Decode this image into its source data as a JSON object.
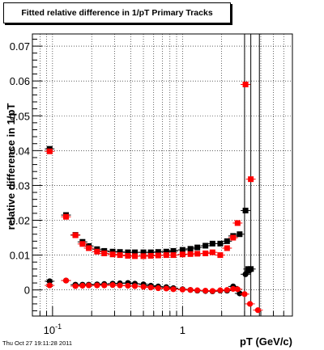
{
  "title": "Fitted relative difference in 1/pT  Primary Tracks",
  "footer": "Thu Oct 27 19:11:28 2011",
  "chart_data": {
    "type": "scatter",
    "title": "Fitted relative difference in 1/pT  Primary Tracks",
    "xlabel": "pT (GeV/c)",
    "ylabel": "relative difference in 1/pT",
    "xscale": "log",
    "xlim": [
      0.07,
      7.0
    ],
    "ylim": [
      -0.0075,
      0.0735
    ],
    "grid": true,
    "x_ticks": [
      {
        "value": 0.1,
        "label": "10⁻¹"
      },
      {
        "value": 1,
        "label": "1"
      }
    ],
    "y_ticks": [
      {
        "value": 0,
        "label": "0"
      },
      {
        "value": 0.01,
        "label": "0.01"
      },
      {
        "value": 0.02,
        "label": "0.02"
      },
      {
        "value": 0.03,
        "label": "0.03"
      },
      {
        "value": 0.04,
        "label": "0.04"
      },
      {
        "value": 0.05,
        "label": "0.05"
      },
      {
        "value": 0.06,
        "label": "0.06"
      },
      {
        "value": 0.07,
        "label": "0.07"
      }
    ],
    "colors": {
      "black_series": "#000000",
      "red_series": "#ff0000"
    },
    "vertical_lines_x": [
      3.0,
      3.35,
      3.9
    ],
    "series": [
      {
        "marker": "square",
        "color": "#000000",
        "points": [
          [
            0.095,
            0.0405
          ],
          [
            0.127,
            0.0215
          ],
          [
            0.15,
            0.0158
          ],
          [
            0.17,
            0.0138
          ],
          [
            0.19,
            0.0126
          ],
          [
            0.22,
            0.0117
          ],
          [
            0.25,
            0.0112
          ],
          [
            0.29,
            0.011
          ],
          [
            0.33,
            0.0109
          ],
          [
            0.38,
            0.0108
          ],
          [
            0.43,
            0.0108
          ],
          [
            0.5,
            0.0108
          ],
          [
            0.57,
            0.0108
          ],
          [
            0.65,
            0.0109
          ],
          [
            0.75,
            0.011
          ],
          [
            0.85,
            0.0112
          ],
          [
            1.0,
            0.0115
          ],
          [
            1.15,
            0.0118
          ],
          [
            1.3,
            0.0122
          ],
          [
            1.5,
            0.0127
          ],
          [
            1.7,
            0.0133
          ],
          [
            1.95,
            0.0133
          ],
          [
            2.2,
            0.014
          ],
          [
            2.45,
            0.0155
          ],
          [
            2.75,
            0.016
          ],
          [
            3.05,
            0.0228
          ],
          [
            3.2,
            0.006
          ],
          [
            3.35,
            0.006
          ]
        ]
      },
      {
        "marker": "square",
        "color": "#ff0000",
        "points": [
          [
            0.095,
            0.0398
          ],
          [
            0.127,
            0.021
          ],
          [
            0.15,
            0.0157
          ],
          [
            0.17,
            0.0132
          ],
          [
            0.19,
            0.012
          ],
          [
            0.22,
            0.011
          ],
          [
            0.25,
            0.0105
          ],
          [
            0.29,
            0.0102
          ],
          [
            0.33,
            0.01
          ],
          [
            0.38,
            0.0098
          ],
          [
            0.43,
            0.0097
          ],
          [
            0.5,
            0.0097
          ],
          [
            0.57,
            0.0098
          ],
          [
            0.65,
            0.0099
          ],
          [
            0.75,
            0.01
          ],
          [
            0.85,
            0.01
          ],
          [
            1.0,
            0.0102
          ],
          [
            1.15,
            0.0103
          ],
          [
            1.3,
            0.0104
          ],
          [
            1.5,
            0.0105
          ],
          [
            1.7,
            0.0108
          ],
          [
            1.95,
            0.01
          ],
          [
            2.2,
            0.012
          ],
          [
            2.45,
            0.015
          ],
          [
            2.65,
            0.0192
          ],
          [
            3.05,
            0.059
          ],
          [
            3.35,
            0.0318
          ]
        ]
      },
      {
        "marker": "circle",
        "color": "#000000",
        "points": [
          [
            0.095,
            0.0025
          ],
          [
            0.127,
            0.0027
          ],
          [
            0.15,
            0.0015
          ],
          [
            0.17,
            0.0015
          ],
          [
            0.19,
            0.0015
          ],
          [
            0.22,
            0.0016
          ],
          [
            0.25,
            0.0017
          ],
          [
            0.29,
            0.0018
          ],
          [
            0.33,
            0.0019
          ],
          [
            0.38,
            0.002
          ],
          [
            0.43,
            0.0018
          ],
          [
            0.5,
            0.0016
          ],
          [
            0.57,
            0.0012
          ],
          [
            0.65,
            0.001
          ],
          [
            0.75,
            0.0008
          ],
          [
            0.85,
            0.0005
          ],
          [
            1.0,
            0.0002
          ],
          [
            1.15,
            0.0
          ],
          [
            1.3,
            -0.0002
          ],
          [
            1.5,
            -0.0003
          ],
          [
            1.7,
            -0.0004
          ],
          [
            1.95,
            -0.0002
          ],
          [
            2.2,
            -0.0002
          ],
          [
            2.45,
            0.001
          ],
          [
            2.75,
            -0.001
          ],
          [
            3.05,
            0.0045
          ],
          [
            3.25,
            0.0055
          ]
        ]
      },
      {
        "marker": "circle",
        "color": "#ff0000",
        "points": [
          [
            0.095,
            0.0013
          ],
          [
            0.127,
            0.0027
          ],
          [
            0.15,
            0.0011
          ],
          [
            0.17,
            0.0012
          ],
          [
            0.19,
            0.0013
          ],
          [
            0.22,
            0.0013
          ],
          [
            0.25,
            0.0013
          ],
          [
            0.29,
            0.0014
          ],
          [
            0.33,
            0.0013
          ],
          [
            0.38,
            0.0012
          ],
          [
            0.43,
            0.0011
          ],
          [
            0.5,
            0.0009
          ],
          [
            0.57,
            0.0007
          ],
          [
            0.65,
            0.0005
          ],
          [
            0.75,
            0.0004
          ],
          [
            0.85,
            0.0002
          ],
          [
            1.0,
            0.0001
          ],
          [
            1.15,
            0.0
          ],
          [
            1.3,
            -0.0001
          ],
          [
            1.5,
            -0.0002
          ],
          [
            1.7,
            -0.0003
          ],
          [
            1.95,
            -0.0001
          ],
          [
            2.2,
            0.0
          ],
          [
            2.45,
            0.0003
          ],
          [
            2.65,
            0.0002
          ],
          [
            3.0,
            -0.0012
          ],
          [
            3.3,
            -0.004
          ],
          [
            3.8,
            -0.0058
          ]
        ]
      }
    ]
  }
}
